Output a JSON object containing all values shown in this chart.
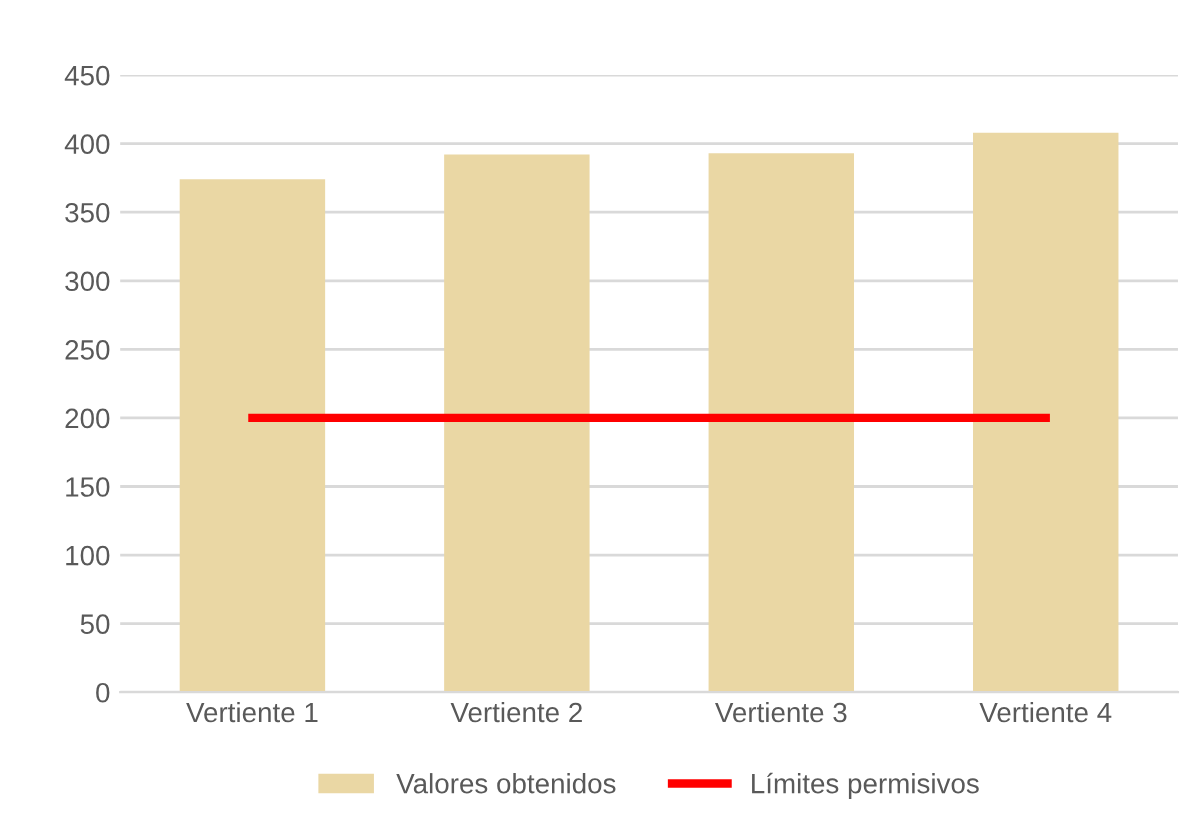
{
  "chart_data": {
    "type": "bar",
    "categories": [
      "Vertiente 1",
      "Vertiente 2",
      "Vertiente 3",
      "Vertiente 4"
    ],
    "series": [
      {
        "name": "Valores obtenidos",
        "color": "#ead7a4",
        "values": [
          374,
          392,
          393,
          408
        ]
      },
      {
        "name": "Límites permisivos",
        "type": "line",
        "color": "#ff0000",
        "values": [
          200,
          200,
          200,
          200
        ]
      }
    ],
    "ylim": [
      0,
      450
    ],
    "yticks": [
      0,
      50,
      100,
      150,
      200,
      250,
      300,
      350,
      400,
      450
    ],
    "grid": "y",
    "legend": "bottom",
    "marker": "none",
    "line_style": "solid"
  }
}
